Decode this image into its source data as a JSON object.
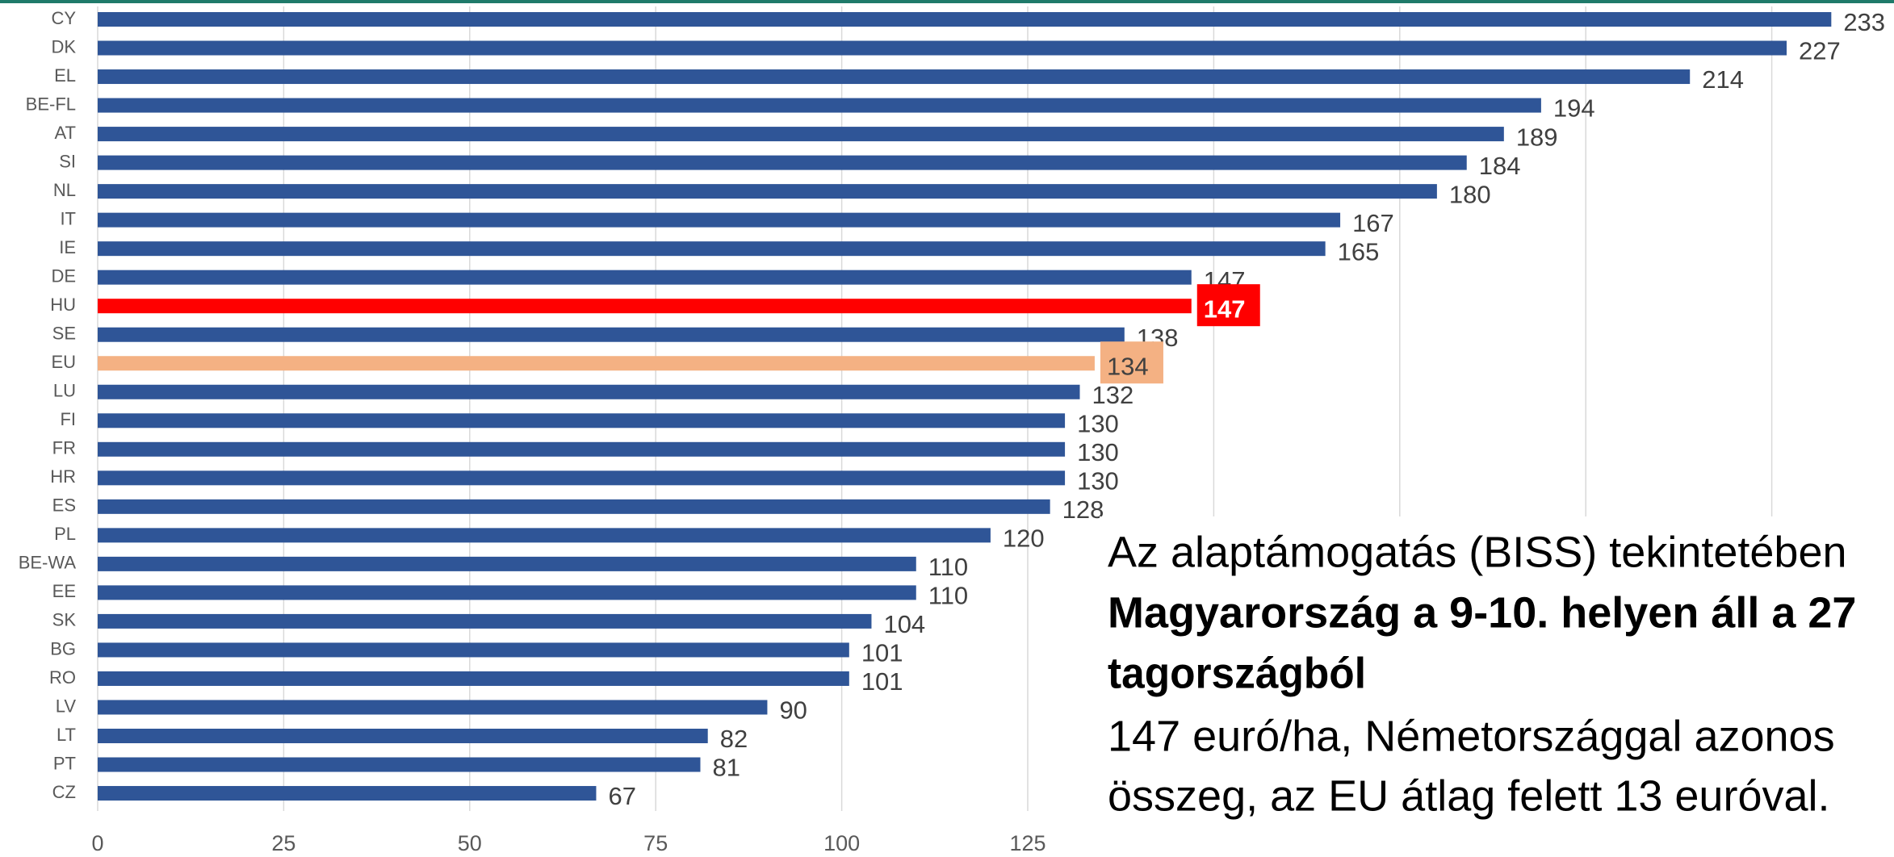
{
  "chart_data": {
    "type": "bar",
    "orientation": "horizontal",
    "categories": [
      "CY",
      "DK",
      "EL",
      "BE-FL",
      "AT",
      "SI",
      "NL",
      "IT",
      "IE",
      "DE",
      "HU",
      "SE",
      "EU",
      "LU",
      "FI",
      "FR",
      "HR",
      "ES",
      "PL",
      "BE-WA",
      "EE",
      "SK",
      "BG",
      "RO",
      "LV",
      "LT",
      "PT",
      "CZ"
    ],
    "values": [
      233,
      227,
      214,
      194,
      189,
      184,
      180,
      167,
      165,
      147,
      147,
      138,
      134,
      132,
      130,
      130,
      130,
      128,
      120,
      110,
      110,
      104,
      101,
      101,
      90,
      82,
      81,
      67
    ],
    "color": "#2f5597",
    "colors": [
      "#2f5597",
      "#2f5597",
      "#2f5597",
      "#2f5597",
      "#2f5597",
      "#2f5597",
      "#2f5597",
      "#2f5597",
      "#2f5597",
      "#2f5597",
      "#ff0000",
      "#2f5597",
      "#f4b183",
      "#2f5597",
      "#2f5597",
      "#2f5597",
      "#2f5597",
      "#2f5597",
      "#2f5597",
      "#2f5597",
      "#2f5597",
      "#2f5597",
      "#2f5597",
      "#2f5597",
      "#2f5597",
      "#2f5597",
      "#2f5597",
      "#2f5597"
    ],
    "xlim": [
      0,
      250
    ],
    "xticks": [
      0,
      25,
      50,
      75,
      100,
      125,
      150,
      175,
      200,
      225
    ],
    "grid": true,
    "annotation": [
      {
        "text": "Az alaptámogatás (BISS) tekintetében",
        "bold": false
      },
      {
        "text": "Magyarország a 9-10. helyen áll a 27",
        "bold": true
      },
      {
        "text": "tagországból",
        "bold": true
      },
      {
        "text": "147 euró/ha, Németországgal azonos",
        "bold": false
      },
      {
        "text": "összeg, az EU átlag felett 13 euróval.",
        "bold": false
      }
    ]
  }
}
